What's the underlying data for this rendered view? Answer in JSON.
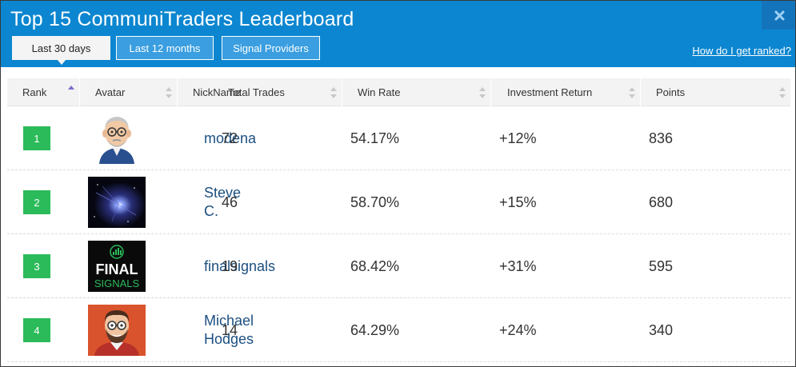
{
  "header": {
    "title": "Top 15 CommuniTraders Leaderboard",
    "close_icon": "close-icon",
    "tabs": [
      {
        "label": "Last 30 days",
        "active": true
      },
      {
        "label": "Last 12 months",
        "active": false
      },
      {
        "label": "Signal Providers",
        "active": false
      }
    ],
    "ranked_link": "How do I get ranked?"
  },
  "colors": {
    "header_bg": "#0c86d0",
    "rank_badge": "#2bbb5a",
    "nickname": "#1b4f80"
  },
  "table": {
    "columns": [
      "Rank",
      "Avatar",
      "NickName",
      "Total Trades",
      "Win Rate",
      "Investment Return",
      "Points"
    ],
    "sorted_column": "Rank",
    "rows": [
      {
        "rank": "1",
        "avatar": "bald-man-glasses-avatar",
        "nickname": "modena",
        "total_trades": "72",
        "win_rate": "54.17%",
        "investment_return": "+12%",
        "points": "836"
      },
      {
        "rank": "2",
        "avatar": "space-nebula-avatar",
        "nickname": "Steve C.",
        "total_trades": "46",
        "win_rate": "58.70%",
        "investment_return": "+15%",
        "points": "680"
      },
      {
        "rank": "3",
        "avatar": "final-signals-logo-avatar",
        "nickname": "finalsignals",
        "total_trades": "19",
        "win_rate": "68.42%",
        "investment_return": "+31%",
        "points": "595"
      },
      {
        "rank": "4",
        "avatar": "bearded-man-avatar",
        "nickname": "Michael Hodges",
        "total_trades": "14",
        "win_rate": "64.29%",
        "investment_return": "+24%",
        "points": "340"
      }
    ],
    "logo_text": {
      "line1": "FINAL",
      "line2": "SIGNALS"
    }
  }
}
